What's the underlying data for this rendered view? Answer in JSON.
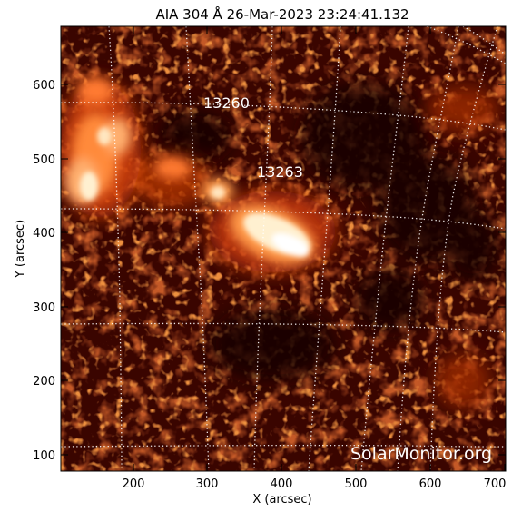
{
  "title": "AIA 304 Å 26-Mar-2023 23:24:41.132",
  "xlabel": "X (arcsec)",
  "ylabel": "Y (arcsec)",
  "xticks": [
    "200",
    "300",
    "400",
    "500",
    "600",
    "700"
  ],
  "yticks": [
    "100",
    "200",
    "300",
    "400",
    "500",
    "600"
  ],
  "regions": [
    "13260",
    "13263"
  ],
  "watermark": "SolarMonitor.org",
  "colors": {
    "background": "#ffffff",
    "axis": "#000000",
    "image_dark": "#1a0000",
    "image_mid": "#b02a08",
    "image_bright": "#fff4dc",
    "grid": "#ffffff"
  },
  "chart_data": {
    "type": "heatmap",
    "title": "AIA 304 Å 26-Mar-2023 23:24:41.132",
    "xlabel": "X (arcsec)",
    "ylabel": "Y (arcsec)",
    "xlim": [
      103,
      703
    ],
    "ylim": [
      80,
      680
    ],
    "x_ticks": [
      200,
      300,
      400,
      500,
      600,
      700
    ],
    "y_ticks": [
      100,
      200,
      300,
      400,
      500,
      600
    ],
    "grid": true,
    "colormap": "SDO AIA 304",
    "annotations": [
      {
        "label": "13260",
        "x": 300,
        "y": 583
      },
      {
        "label": "13263",
        "x": 375,
        "y": 486
      }
    ]
  }
}
